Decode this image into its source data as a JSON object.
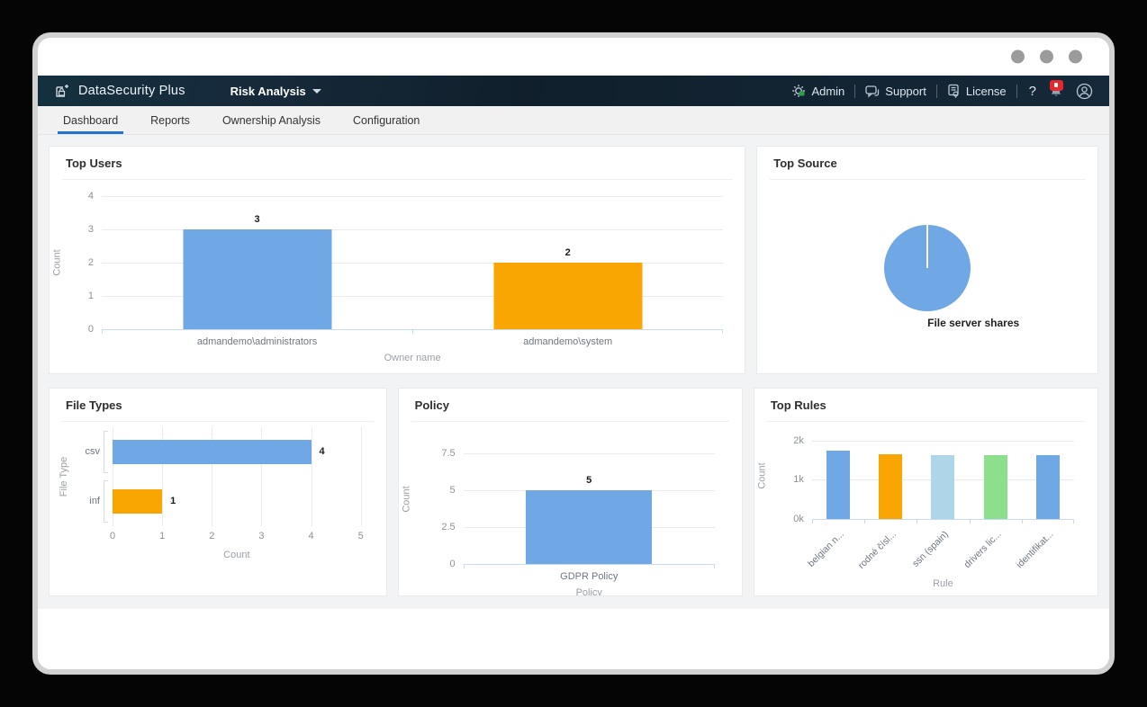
{
  "window": {
    "control_dots": 3
  },
  "header": {
    "brand": "DataSecurity Plus",
    "module": "Risk Analysis",
    "right": {
      "admin": "Admin",
      "support": "Support",
      "license": "License",
      "help": "?"
    }
  },
  "tabs": {
    "items": [
      {
        "label": "Dashboard",
        "active": true
      },
      {
        "label": "Reports",
        "active": false
      },
      {
        "label": "Ownership Analysis",
        "active": false
      },
      {
        "label": "Configuration",
        "active": false
      }
    ]
  },
  "colors": {
    "blue_bar": "#6FA8E5",
    "orange_bar": "#F9A602",
    "light_blue_bar": "#AED6E8",
    "light_green_bar": "#8CE08C",
    "tab_underline": "#1f74d4",
    "header_bg": "#15293a"
  },
  "chart_data": [
    {
      "id": "top_users",
      "type": "bar",
      "title": "Top Users",
      "categories": [
        "admandemo\\administrators",
        "admandemo\\system"
      ],
      "values": [
        3,
        2
      ],
      "data_labels": [
        "3",
        "2"
      ],
      "bar_colors": [
        "#6FA8E5",
        "#F9A602"
      ],
      "xlabel": "Owner name",
      "ylabel": "Count",
      "ylim": [
        0,
        4
      ],
      "yticks": [
        0,
        1,
        2,
        3,
        4
      ],
      "grid": true,
      "legend": "none"
    },
    {
      "id": "top_source",
      "type": "pie",
      "title": "Top Source",
      "slices": [
        {
          "label": "File server shares",
          "value": 100,
          "color": "#6FA8E5"
        }
      ],
      "legend": "none"
    },
    {
      "id": "file_types",
      "type": "bar",
      "orientation": "horizontal",
      "title": "File Types",
      "categories": [
        "csv",
        "inf"
      ],
      "values": [
        4,
        1
      ],
      "data_labels": [
        "4",
        "1"
      ],
      "bar_colors": [
        "#6FA8E5",
        "#F9A602"
      ],
      "xlabel": "Count",
      "ylabel": "File Type",
      "xlim": [
        0,
        5
      ],
      "xticks": [
        0,
        1,
        2,
        3,
        4,
        5
      ],
      "grid": true,
      "legend": "none"
    },
    {
      "id": "policy",
      "type": "bar",
      "title": "Policy",
      "categories": [
        "GDPR Policy"
      ],
      "values": [
        5
      ],
      "data_labels": [
        "5"
      ],
      "bar_colors": [
        "#6FA8E5"
      ],
      "xlabel": "Policy",
      "ylabel": "Count",
      "ylim": [
        0,
        8.75
      ],
      "yticks": [
        0,
        2.5,
        5,
        7.5
      ],
      "grid": true,
      "legend": "none"
    },
    {
      "id": "top_rules",
      "type": "bar",
      "title": "Top Rules",
      "categories": [
        "belgian n...",
        "rodné čísl...",
        "ssn (spain)",
        "drivers lic...",
        "identifikat..."
      ],
      "values": [
        1750,
        1650,
        1620,
        1620,
        1630
      ],
      "bar_colors": [
        "#6FA8E5",
        "#F9A602",
        "#AED6E8",
        "#8CE08C",
        "#6FA8E5"
      ],
      "xlabel": "Rule",
      "ylabel": "Count",
      "ylim": [
        0,
        2200
      ],
      "yticks": [
        0,
        1000,
        2000
      ],
      "ytick_labels": [
        "0k",
        "1k",
        "2k"
      ],
      "rotated_category_labels": true,
      "grid": true,
      "legend": "none"
    }
  ]
}
